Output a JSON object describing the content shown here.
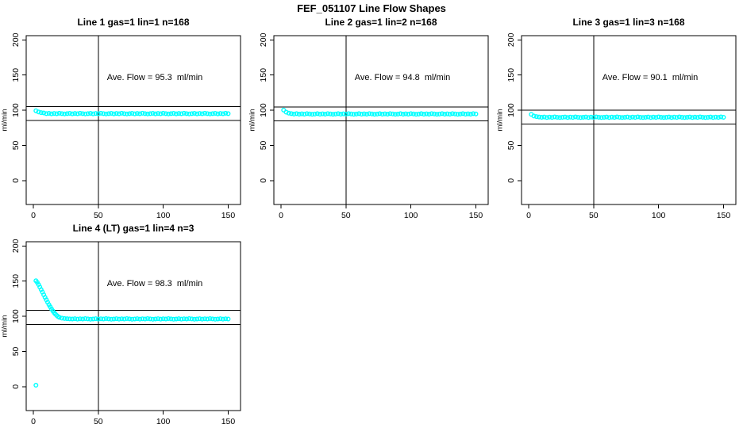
{
  "page_title": "FEF_051107  Line Flow Shapes",
  "colors": {
    "points": "#00FFFF",
    "axis": "#000000",
    "background": "#FFFFFF"
  },
  "axes": {
    "x_ticks": [
      0,
      50,
      100,
      150
    ],
    "y_ticks": [
      0,
      50,
      100,
      150,
      200
    ],
    "x_range": [
      -5.5,
      159.5
    ],
    "y_range": [
      -34,
      206
    ],
    "y_label": "ml/min",
    "vline_x": 50
  },
  "chart_data": [
    {
      "type": "scatter",
      "title": "Line 1 gas=1 lin=1 n=168",
      "annotation": "Ave. Flow = 95.3  ml/min",
      "ave_flow_ml_min": 95.3,
      "n": 168,
      "ref_lines": [
        105.3,
        85.3
      ],
      "points": [
        [
          2,
          99.3
        ],
        [
          4,
          97.6
        ],
        [
          6,
          96.6
        ],
        [
          8,
          96.1
        ],
        [
          10,
          95.1
        ],
        [
          12,
          95.6
        ],
        [
          14,
          94.9
        ],
        [
          16,
          95.4
        ],
        [
          18,
          95.0
        ],
        [
          20,
          95.7
        ],
        [
          22,
          95.2
        ],
        [
          24,
          94.8
        ],
        [
          26,
          95.1
        ],
        [
          28,
          95.6
        ],
        [
          30,
          94.9
        ],
        [
          32,
          95.4
        ],
        [
          34,
          95.0
        ],
        [
          36,
          95.7
        ],
        [
          38,
          95.2
        ],
        [
          40,
          94.8
        ],
        [
          42,
          95.1
        ],
        [
          44,
          95.6
        ],
        [
          46,
          94.9
        ],
        [
          48,
          95.4
        ],
        [
          50,
          95.0
        ],
        [
          52,
          95.7
        ],
        [
          54,
          95.2
        ],
        [
          56,
          94.8
        ],
        [
          58,
          95.1
        ],
        [
          60,
          95.6
        ],
        [
          62,
          94.9
        ],
        [
          64,
          95.4
        ],
        [
          66,
          95.0
        ],
        [
          68,
          95.7
        ],
        [
          70,
          95.2
        ],
        [
          72,
          94.8
        ],
        [
          74,
          95.1
        ],
        [
          76,
          95.6
        ],
        [
          78,
          94.9
        ],
        [
          80,
          95.4
        ],
        [
          82,
          95.0
        ],
        [
          84,
          95.7
        ],
        [
          86,
          95.2
        ],
        [
          88,
          94.8
        ],
        [
          90,
          95.1
        ],
        [
          92,
          95.6
        ],
        [
          94,
          94.9
        ],
        [
          96,
          95.4
        ],
        [
          98,
          95.0
        ],
        [
          100,
          95.7
        ],
        [
          102,
          95.2
        ],
        [
          104,
          94.8
        ],
        [
          106,
          95.1
        ],
        [
          108,
          95.6
        ],
        [
          110,
          94.9
        ],
        [
          112,
          95.4
        ],
        [
          114,
          95.0
        ],
        [
          116,
          95.7
        ],
        [
          118,
          95.2
        ],
        [
          120,
          94.8
        ],
        [
          122,
          95.1
        ],
        [
          124,
          95.6
        ],
        [
          126,
          94.9
        ],
        [
          128,
          95.4
        ],
        [
          130,
          95.0
        ],
        [
          132,
          95.7
        ],
        [
          134,
          95.2
        ],
        [
          136,
          94.8
        ],
        [
          138,
          95.1
        ],
        [
          140,
          95.6
        ],
        [
          142,
          94.9
        ],
        [
          144,
          95.4
        ],
        [
          146,
          95.0
        ],
        [
          148,
          95.7
        ],
        [
          150,
          95.2
        ]
      ]
    },
    {
      "type": "scatter",
      "title": "Line 2 gas=1 lin=2 n=168",
      "annotation": "Ave. Flow = 94.8  ml/min",
      "ave_flow_ml_min": 94.8,
      "n": 168,
      "ref_lines": [
        104.8,
        84.8
      ],
      "points": [
        [
          2,
          100.2
        ],
        [
          4,
          97.3
        ],
        [
          6,
          95.8
        ],
        [
          8,
          95.2
        ],
        [
          10,
          94.6
        ],
        [
          12,
          95.1
        ],
        [
          14,
          94.4
        ],
        [
          16,
          94.9
        ],
        [
          18,
          94.5
        ],
        [
          20,
          95.2
        ],
        [
          22,
          94.7
        ],
        [
          24,
          94.3
        ],
        [
          26,
          94.6
        ],
        [
          28,
          95.1
        ],
        [
          30,
          94.4
        ],
        [
          32,
          94.9
        ],
        [
          34,
          94.5
        ],
        [
          36,
          95.2
        ],
        [
          38,
          94.7
        ],
        [
          40,
          94.3
        ],
        [
          42,
          94.6
        ],
        [
          44,
          95.1
        ],
        [
          46,
          94.4
        ],
        [
          48,
          94.9
        ],
        [
          50,
          94.5
        ],
        [
          52,
          95.2
        ],
        [
          54,
          94.7
        ],
        [
          56,
          94.3
        ],
        [
          58,
          94.6
        ],
        [
          60,
          95.1
        ],
        [
          62,
          94.4
        ],
        [
          64,
          94.9
        ],
        [
          66,
          94.5
        ],
        [
          68,
          95.2
        ],
        [
          70,
          94.7
        ],
        [
          72,
          94.3
        ],
        [
          74,
          94.6
        ],
        [
          76,
          95.1
        ],
        [
          78,
          94.4
        ],
        [
          80,
          94.9
        ],
        [
          82,
          94.5
        ],
        [
          84,
          95.2
        ],
        [
          86,
          94.7
        ],
        [
          88,
          94.3
        ],
        [
          90,
          94.6
        ],
        [
          92,
          95.1
        ],
        [
          94,
          94.4
        ],
        [
          96,
          94.9
        ],
        [
          98,
          94.5
        ],
        [
          100,
          95.2
        ],
        [
          102,
          94.7
        ],
        [
          104,
          94.3
        ],
        [
          106,
          94.6
        ],
        [
          108,
          95.1
        ],
        [
          110,
          94.4
        ],
        [
          112,
          94.9
        ],
        [
          114,
          94.5
        ],
        [
          116,
          95.2
        ],
        [
          118,
          94.7
        ],
        [
          120,
          94.3
        ],
        [
          122,
          94.6
        ],
        [
          124,
          95.1
        ],
        [
          126,
          94.4
        ],
        [
          128,
          94.9
        ],
        [
          130,
          94.5
        ],
        [
          132,
          95.2
        ],
        [
          134,
          94.7
        ],
        [
          136,
          94.3
        ],
        [
          138,
          94.6
        ],
        [
          140,
          95.1
        ],
        [
          142,
          94.4
        ],
        [
          144,
          94.9
        ],
        [
          146,
          94.5
        ],
        [
          148,
          95.2
        ],
        [
          150,
          94.7
        ]
      ]
    },
    {
      "type": "scatter",
      "title": "Line 3 gas=1 lin=3 n=168",
      "annotation": "Ave. Flow = 90.1  ml/min",
      "ave_flow_ml_min": 90.1,
      "n": 168,
      "ref_lines": [
        100.1,
        80.1
      ],
      "points": [
        [
          2,
          94.2
        ],
        [
          4,
          91.8
        ],
        [
          6,
          90.9
        ],
        [
          8,
          90.4
        ],
        [
          10,
          89.9
        ],
        [
          12,
          90.4
        ],
        [
          14,
          89.7
        ],
        [
          16,
          90.2
        ],
        [
          18,
          89.8
        ],
        [
          20,
          90.5
        ],
        [
          22,
          90.0
        ],
        [
          24,
          89.6
        ],
        [
          26,
          89.9
        ],
        [
          28,
          90.4
        ],
        [
          30,
          89.7
        ],
        [
          32,
          90.2
        ],
        [
          34,
          89.8
        ],
        [
          36,
          90.5
        ],
        [
          38,
          90.0
        ],
        [
          40,
          89.6
        ],
        [
          42,
          89.9
        ],
        [
          44,
          90.4
        ],
        [
          46,
          89.7
        ],
        [
          48,
          90.2
        ],
        [
          50,
          89.8
        ],
        [
          52,
          90.5
        ],
        [
          54,
          90.0
        ],
        [
          56,
          89.6
        ],
        [
          58,
          89.9
        ],
        [
          60,
          90.4
        ],
        [
          62,
          89.7
        ],
        [
          64,
          90.2
        ],
        [
          66,
          89.8
        ],
        [
          68,
          90.5
        ],
        [
          70,
          90.0
        ],
        [
          72,
          89.6
        ],
        [
          74,
          89.9
        ],
        [
          76,
          90.4
        ],
        [
          78,
          89.7
        ],
        [
          80,
          90.2
        ],
        [
          82,
          89.8
        ],
        [
          84,
          90.5
        ],
        [
          86,
          90.0
        ],
        [
          88,
          89.6
        ],
        [
          90,
          89.9
        ],
        [
          92,
          90.4
        ],
        [
          94,
          89.7
        ],
        [
          96,
          90.2
        ],
        [
          98,
          89.8
        ],
        [
          100,
          90.5
        ],
        [
          102,
          90.0
        ],
        [
          104,
          89.6
        ],
        [
          106,
          89.9
        ],
        [
          108,
          90.4
        ],
        [
          110,
          89.7
        ],
        [
          112,
          90.2
        ],
        [
          114,
          89.8
        ],
        [
          116,
          90.5
        ],
        [
          118,
          90.0
        ],
        [
          120,
          89.6
        ],
        [
          122,
          89.9
        ],
        [
          124,
          90.4
        ],
        [
          126,
          89.7
        ],
        [
          128,
          90.2
        ],
        [
          130,
          89.8
        ],
        [
          132,
          90.5
        ],
        [
          134,
          90.0
        ],
        [
          136,
          89.6
        ],
        [
          138,
          89.9
        ],
        [
          140,
          90.4
        ],
        [
          142,
          89.7
        ],
        [
          144,
          90.2
        ],
        [
          146,
          89.8
        ],
        [
          148,
          90.5
        ],
        [
          150,
          90.0
        ]
      ]
    },
    {
      "type": "scatter",
      "title": "Line 4 (LT) gas=1 lin=4 n=3",
      "annotation": "Ave. Flow = 98.3  ml/min",
      "ave_flow_ml_min": 98.3,
      "n": 3,
      "ref_lines": [
        108.3,
        88.3
      ],
      "points": [
        [
          2,
          2
        ],
        [
          2,
          150.5
        ],
        [
          3,
          148.2
        ],
        [
          4,
          145.1
        ],
        [
          5,
          141.6
        ],
        [
          6,
          138.0
        ],
        [
          7,
          134.4
        ],
        [
          8,
          130.6
        ],
        [
          9,
          127.0
        ],
        [
          10,
          123.4
        ],
        [
          11,
          119.9
        ],
        [
          12,
          116.6
        ],
        [
          13,
          113.4
        ],
        [
          14,
          110.5
        ],
        [
          15,
          107.7
        ],
        [
          16,
          105.2
        ],
        [
          17,
          103.0
        ],
        [
          18,
          101.2
        ],
        [
          19,
          99.7
        ],
        [
          20,
          98.6
        ],
        [
          22,
          97.4
        ],
        [
          24,
          96.8
        ],
        [
          26,
          96.5
        ],
        [
          28,
          96.3
        ],
        [
          30,
          96.2
        ],
        [
          32,
          96.6
        ],
        [
          34,
          96.0
        ],
        [
          36,
          96.4
        ],
        [
          38,
          96.1
        ],
        [
          40,
          96.7
        ],
        [
          42,
          96.3
        ],
        [
          44,
          95.9
        ],
        [
          46,
          96.2
        ],
        [
          48,
          96.6
        ],
        [
          50,
          96.0
        ],
        [
          52,
          96.4
        ],
        [
          54,
          96.1
        ],
        [
          56,
          96.7
        ],
        [
          58,
          96.3
        ],
        [
          60,
          95.9
        ],
        [
          62,
          96.2
        ],
        [
          64,
          96.6
        ],
        [
          66,
          96.0
        ],
        [
          68,
          96.4
        ],
        [
          70,
          96.1
        ],
        [
          72,
          96.7
        ],
        [
          74,
          96.3
        ],
        [
          76,
          95.9
        ],
        [
          78,
          96.2
        ],
        [
          80,
          96.6
        ],
        [
          82,
          96.0
        ],
        [
          84,
          96.4
        ],
        [
          86,
          96.1
        ],
        [
          88,
          96.7
        ],
        [
          90,
          96.3
        ],
        [
          92,
          95.9
        ],
        [
          94,
          96.2
        ],
        [
          96,
          96.6
        ],
        [
          98,
          96.0
        ],
        [
          100,
          96.4
        ],
        [
          102,
          96.1
        ],
        [
          104,
          96.7
        ],
        [
          106,
          96.3
        ],
        [
          108,
          95.9
        ],
        [
          110,
          96.2
        ],
        [
          112,
          96.6
        ],
        [
          114,
          96.0
        ],
        [
          116,
          96.4
        ],
        [
          118,
          96.1
        ],
        [
          120,
          96.7
        ],
        [
          122,
          96.3
        ],
        [
          124,
          95.9
        ],
        [
          126,
          96.2
        ],
        [
          128,
          96.6
        ],
        [
          130,
          96.0
        ],
        [
          132,
          96.4
        ],
        [
          134,
          96.1
        ],
        [
          136,
          96.7
        ],
        [
          138,
          96.3
        ],
        [
          140,
          95.9
        ],
        [
          142,
          96.2
        ],
        [
          144,
          96.6
        ],
        [
          146,
          96.0
        ],
        [
          148,
          96.4
        ],
        [
          150,
          96.1
        ]
      ]
    }
  ]
}
